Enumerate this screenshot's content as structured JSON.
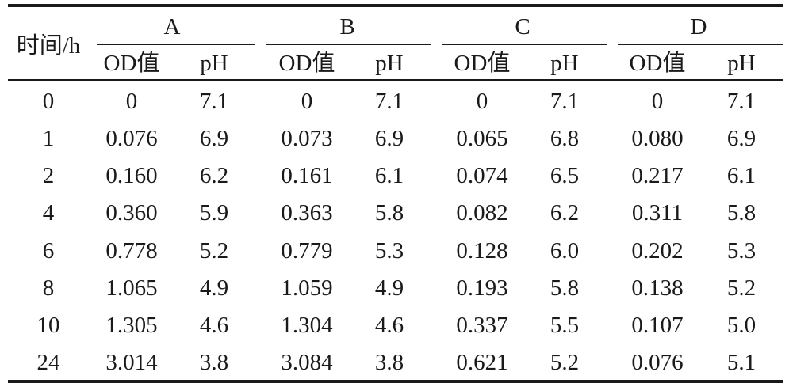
{
  "table": {
    "time_header": "时间/h",
    "groups": [
      "A",
      "B",
      "C",
      "D"
    ],
    "sub_headers": [
      "OD值",
      "pH"
    ],
    "rows": [
      {
        "time": "0",
        "values": [
          "0",
          "7.1",
          "0",
          "7.1",
          "0",
          "7.1",
          "0",
          "7.1"
        ]
      },
      {
        "time": "1",
        "values": [
          "0.076",
          "6.9",
          "0.073",
          "6.9",
          "0.065",
          "6.8",
          "0.080",
          "6.9"
        ]
      },
      {
        "time": "2",
        "values": [
          "0.160",
          "6.2",
          "0.161",
          "6.1",
          "0.074",
          "6.5",
          "0.217",
          "6.1"
        ]
      },
      {
        "time": "4",
        "values": [
          "0.360",
          "5.9",
          "0.363",
          "5.8",
          "0.082",
          "6.2",
          "0.311",
          "5.8"
        ]
      },
      {
        "time": "6",
        "values": [
          "0.778",
          "5.2",
          "0.779",
          "5.3",
          "0.128",
          "6.0",
          "0.202",
          "5.3"
        ]
      },
      {
        "time": "8",
        "values": [
          "1.065",
          "4.9",
          "1.059",
          "4.9",
          "0.193",
          "5.8",
          "0.138",
          "5.2"
        ]
      },
      {
        "time": "10",
        "values": [
          "1.305",
          "4.6",
          "1.304",
          "4.6",
          "0.337",
          "5.5",
          "0.107",
          "5.0"
        ]
      },
      {
        "time": "24",
        "values": [
          "3.014",
          "3.8",
          "3.084",
          "3.8",
          "0.621",
          "5.2",
          "0.076",
          "5.1"
        ]
      }
    ]
  }
}
